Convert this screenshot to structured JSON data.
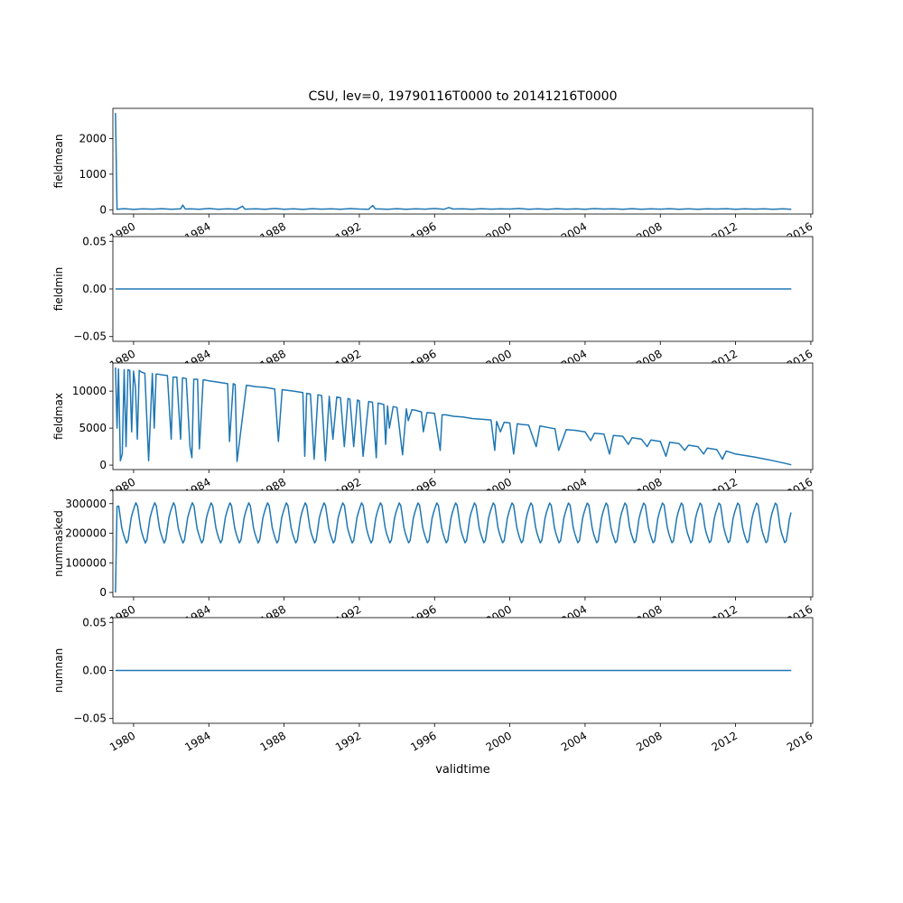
{
  "figure": {
    "title": "CSU, lev=0, 19790116T0000 to 20141216T0000",
    "xlabel": "validtime",
    "line_color": "#1f77b4"
  },
  "chart_data": [
    {
      "type": "line",
      "ylabel": "fieldmean",
      "xlim": [
        1978.9,
        2016.1
      ],
      "ylim": [
        -120,
        2850
      ],
      "yticks": [
        0,
        1000,
        2000
      ],
      "ytick_labels": [
        "0",
        "1000",
        "2000"
      ],
      "xticks": [
        1980,
        1984,
        1988,
        1992,
        1996,
        2000,
        2004,
        2008,
        2012,
        2016
      ],
      "xtick_labels": [
        "1980",
        "1984",
        "1988",
        "1992",
        "1996",
        "2000",
        "2004",
        "2008",
        "2012",
        "2016"
      ],
      "x": [
        1979.04,
        1979.12,
        1979.5,
        1980.0,
        1980.5,
        1981.0,
        1981.5,
        1982.0,
        1982.5,
        1982.62,
        1982.75,
        1983.0,
        1983.5,
        1984.0,
        1984.5,
        1985.0,
        1985.5,
        1985.79,
        1985.92,
        1986.5,
        1987.0,
        1987.5,
        1988.0,
        1988.5,
        1989.0,
        1989.5,
        1990.0,
        1990.5,
        1991.0,
        1991.5,
        1992.0,
        1992.5,
        1992.71,
        1992.85,
        1993.5,
        1994.0,
        1994.5,
        1995.0,
        1995.5,
        1996.0,
        1996.5,
        1996.75,
        1997.0,
        1997.5,
        1998.0,
        1998.5,
        1999.0,
        1999.5,
        2000.0,
        2000.5,
        2001.0,
        2001.5,
        2002.0,
        2002.5,
        2003.0,
        2003.5,
        2004.0,
        2004.5,
        2005.0,
        2005.5,
        2006.0,
        2006.5,
        2007.0,
        2007.5,
        2008.0,
        2008.5,
        2009.0,
        2009.5,
        2010.0,
        2010.5,
        2011.0,
        2011.5,
        2012.0,
        2012.5,
        2013.0,
        2013.5,
        2014.0,
        2014.5,
        2014.96
      ],
      "values": [
        2720,
        15,
        30,
        10,
        25,
        18,
        30,
        12,
        25,
        130,
        20,
        28,
        15,
        35,
        12,
        28,
        15,
        100,
        18,
        25,
        12,
        35,
        15,
        28,
        10,
        30,
        18,
        25,
        12,
        32,
        20,
        15,
        120,
        25,
        15,
        30,
        12,
        28,
        18,
        35,
        15,
        60,
        20,
        28,
        12,
        30,
        18,
        25,
        20,
        35,
        12,
        28,
        15,
        30,
        18,
        25,
        12,
        32,
        20,
        28,
        15,
        30,
        12,
        25,
        18,
        30,
        15,
        28,
        12,
        25,
        20,
        30,
        15,
        28,
        18,
        25,
        12,
        28,
        15
      ]
    },
    {
      "type": "line",
      "ylabel": "fieldmin",
      "xlim": [
        1978.9,
        2016.1
      ],
      "ylim": [
        -0.055,
        0.055
      ],
      "yticks": [
        -0.05,
        0.0,
        0.05
      ],
      "ytick_labels": [
        "−0.05",
        "0.00",
        "0.05"
      ],
      "xticks": [
        1980,
        1984,
        1988,
        1992,
        1996,
        2000,
        2004,
        2008,
        2012,
        2016
      ],
      "xtick_labels": [
        "1980",
        "1984",
        "1988",
        "1992",
        "1996",
        "2000",
        "2004",
        "2008",
        "2012",
        "2016"
      ],
      "x": [
        1979.04,
        2014.96
      ],
      "values": [
        0.0,
        0.0
      ]
    },
    {
      "type": "line",
      "ylabel": "fieldmax",
      "xlim": [
        1978.9,
        2016.1
      ],
      "ylim": [
        -600,
        13800
      ],
      "yticks": [
        0,
        5000,
        10000
      ],
      "ytick_labels": [
        "0",
        "5000",
        "10000"
      ],
      "xticks": [
        1980,
        1984,
        1988,
        1992,
        1996,
        2000,
        2004,
        2008,
        2012,
        2016
      ],
      "xtick_labels": [
        "1980",
        "1984",
        "1988",
        "1992",
        "1996",
        "2000",
        "2004",
        "2008",
        "2012",
        "2016"
      ],
      "x": [
        1979.04,
        1979.12,
        1979.2,
        1979.3,
        1979.4,
        1979.5,
        1979.6,
        1979.7,
        1979.8,
        1979.9,
        1980.0,
        1980.1,
        1980.2,
        1980.3,
        1980.4,
        1980.5,
        1980.6,
        1980.8,
        1981.0,
        1981.1,
        1981.2,
        1981.3,
        1981.5,
        1981.8,
        1982.0,
        1982.1,
        1982.3,
        1982.5,
        1982.6,
        1982.8,
        1983.0,
        1983.1,
        1983.2,
        1983.4,
        1983.5,
        1983.7,
        1983.8,
        1984.0,
        1984.5,
        1985.0,
        1985.1,
        1985.3,
        1985.4,
        1985.5,
        1986.0,
        1986.5,
        1987.0,
        1987.5,
        1987.7,
        1987.9,
        1988.5,
        1989.0,
        1989.1,
        1989.2,
        1989.4,
        1989.6,
        1989.8,
        1990.0,
        1990.2,
        1990.4,
        1990.6,
        1990.8,
        1991.0,
        1991.2,
        1991.4,
        1991.5,
        1991.7,
        1991.9,
        1992.0,
        1992.2,
        1992.5,
        1992.7,
        1992.9,
        1993.0,
        1993.3,
        1993.4,
        1993.5,
        1993.6,
        1993.8,
        1994.0,
        1994.3,
        1994.5,
        1994.6,
        1994.8,
        1995.0,
        1995.3,
        1995.4,
        1995.6,
        1996.0,
        1996.3,
        1996.4,
        1996.6,
        1997.0,
        1997.5,
        1998.0,
        1998.5,
        1999.0,
        1999.2,
        1999.3,
        1999.5,
        1999.7,
        2000.0,
        2000.2,
        2000.4,
        2000.6,
        2001.0,
        2001.4,
        2001.6,
        2001.8,
        2002.0,
        2002.4,
        2002.6,
        2003.0,
        2003.5,
        2004.0,
        2004.3,
        2004.5,
        2005.0,
        2005.3,
        2005.5,
        2006.0,
        2006.3,
        2006.5,
        2007.0,
        2007.3,
        2007.5,
        2008.0,
        2008.3,
        2008.5,
        2009.0,
        2009.3,
        2009.5,
        2010.0,
        2010.3,
        2010.5,
        2011.0,
        2011.3,
        2011.5,
        2012.0,
        2013.0,
        2014.0,
        2014.96
      ],
      "values": [
        13200,
        5000,
        13000,
        600,
        1500,
        12900,
        2500,
        12900,
        12800,
        4500,
        12700,
        10500,
        3500,
        12800,
        12600,
        12500,
        12400,
        600,
        12400,
        5000,
        12300,
        12300,
        12200,
        12100,
        3500,
        11900,
        11900,
        3500,
        11800,
        11700,
        2500,
        1000,
        11600,
        11600,
        2200,
        11500,
        11500,
        11400,
        11200,
        11000,
        3200,
        11000,
        10900,
        500,
        10800,
        10600,
        10500,
        10300,
        3200,
        10200,
        10000,
        9800,
        1200,
        9700,
        9600,
        800,
        9500,
        9400,
        600,
        9300,
        3500,
        9200,
        9100,
        2500,
        9000,
        8900,
        2500,
        8800,
        8700,
        1200,
        8600,
        8500,
        1000,
        8400,
        8200,
        2800,
        8000,
        5000,
        7900,
        7800,
        1400,
        7600,
        6000,
        7500,
        7400,
        7200,
        4500,
        7100,
        7000,
        2000,
        6800,
        6800,
        6600,
        6500,
        6300,
        6200,
        6100,
        2000,
        5900,
        4500,
        5800,
        5700,
        1500,
        5600,
        5500,
        5400,
        2500,
        5300,
        5200,
        5100,
        4900,
        2000,
        4800,
        4700,
        4500,
        3300,
        4300,
        4200,
        1500,
        4000,
        3900,
        2800,
        3700,
        3500,
        2500,
        3400,
        3200,
        1200,
        3100,
        2900,
        2000,
        2700,
        2500,
        1500,
        2300,
        2100,
        800,
        1900,
        1500,
        1100,
        600,
        50
      ]
    },
    {
      "type": "line",
      "ylabel": "nummasked",
      "xlim": [
        1978.9,
        2016.1
      ],
      "ylim": [
        -15000,
        345000
      ],
      "yticks": [
        0,
        100000,
        200000,
        300000
      ],
      "ytick_labels": [
        "0",
        "100000",
        "200000",
        "300000"
      ],
      "xticks": [
        1980,
        1984,
        1988,
        1992,
        1996,
        2000,
        2004,
        2008,
        2012,
        2016
      ],
      "xtick_labels": [
        "1980",
        "1984",
        "1988",
        "1992",
        "1996",
        "2000",
        "2004",
        "2008",
        "2012",
        "2016"
      ],
      "x": [
        1979.04,
        1979.12
      ],
      "values": [
        0,
        290000
      ],
      "seasonal": {
        "start": 1979.21,
        "end": 2014.96,
        "step": 0.0833,
        "mean": 235000,
        "amplitude": 65000,
        "peak_offset": 0.1
      }
    },
    {
      "type": "line",
      "ylabel": "numnan",
      "xlim": [
        1978.9,
        2016.1
      ],
      "ylim": [
        -0.055,
        0.055
      ],
      "yticks": [
        -0.05,
        0.0,
        0.05
      ],
      "ytick_labels": [
        "−0.05",
        "0.00",
        "0.05"
      ],
      "xticks": [
        1980,
        1984,
        1988,
        1992,
        1996,
        2000,
        2004,
        2008,
        2012,
        2016
      ],
      "xtick_labels": [
        "1980",
        "1984",
        "1988",
        "1992",
        "1996",
        "2000",
        "2004",
        "2008",
        "2012",
        "2016"
      ],
      "x": [
        1979.04,
        2014.96
      ],
      "values": [
        0.0,
        0.0
      ]
    }
  ]
}
